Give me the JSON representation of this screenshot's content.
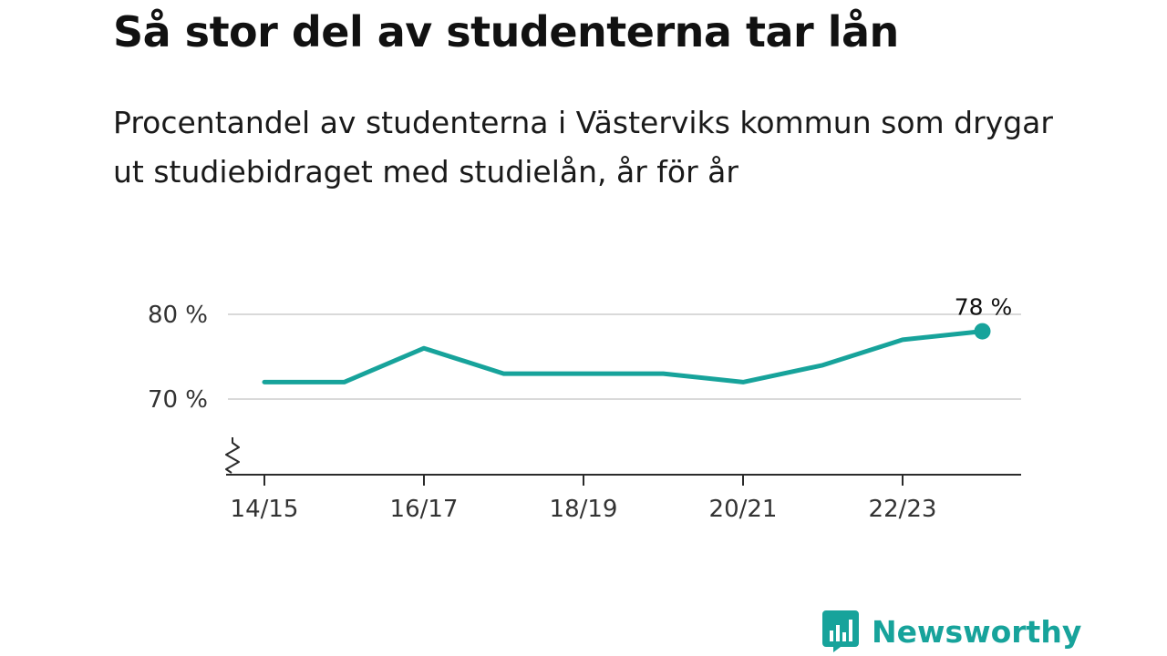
{
  "header": {
    "title": "Så stor del av studenterna tar lån",
    "subtitle": "Procentandel av studenterna i Västerviks kommun som drygar ut studiebidraget med studielån, år för år"
  },
  "branding": {
    "name": "Newsworthy",
    "color": "#17a39b"
  },
  "chart_data": {
    "type": "line",
    "title": "Så stor del av studenterna tar lån",
    "subtitle": "Procentandel av studenterna i Västerviks kommun som drygar ut studiebidraget med studielån, år för år",
    "x": [
      "14/15",
      "15/16",
      "16/17",
      "17/18",
      "18/19",
      "19/20",
      "20/21",
      "21/22",
      "22/23",
      "23/24"
    ],
    "series": [
      {
        "values": [
          72,
          72,
          76,
          73,
          73,
          73,
          72,
          74,
          77,
          78
        ],
        "color": "#17a39b"
      }
    ],
    "x_tick_labels": [
      "14/15",
      "16/17",
      "18/19",
      "20/21",
      "22/23"
    ],
    "y_ticks": [
      70,
      80
    ],
    "y_tick_labels": [
      "70 %",
      "80 %"
    ],
    "ylim": [
      61,
      82
    ],
    "axis_break": true,
    "grid": true,
    "end_label": "78 %",
    "xlabel": "",
    "ylabel": ""
  }
}
